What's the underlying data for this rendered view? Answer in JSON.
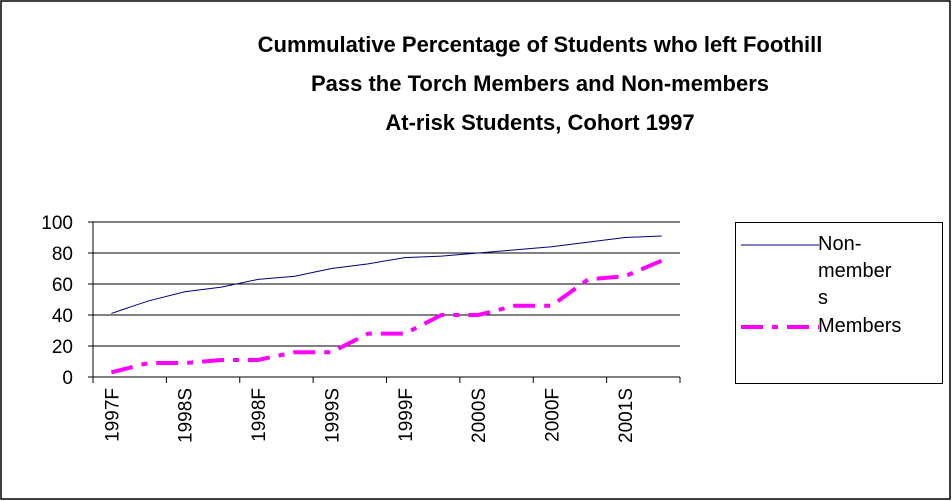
{
  "chart_data": {
    "type": "line",
    "title": [
      "Cummulative Percentage of Students who left Foothill",
      "Pass the Torch Members and Non-members",
      "At-risk Students, Cohort 1997"
    ],
    "categories": [
      "1997F",
      null,
      "1998S",
      null,
      "1998F",
      null,
      "1999S",
      null,
      "1999F",
      null,
      "2000S",
      null,
      "2000F",
      null,
      "2001S",
      null
    ],
    "series": [
      {
        "name": "Non-members",
        "color": "#000080",
        "values": [
          41,
          49,
          55,
          58,
          63,
          65,
          70,
          73,
          77,
          78,
          80,
          82,
          84,
          87,
          90,
          91
        ]
      },
      {
        "name": "Members",
        "color": "#ff00ff",
        "values": [
          3,
          9,
          9,
          11,
          11,
          16,
          16,
          28,
          28,
          40,
          40,
          46,
          46,
          63,
          65,
          75
        ]
      }
    ],
    "ylim": [
      0,
      100
    ],
    "yticks": [
      0,
      20,
      40,
      60,
      80,
      100
    ],
    "grid": true,
    "legend_position": "right"
  }
}
